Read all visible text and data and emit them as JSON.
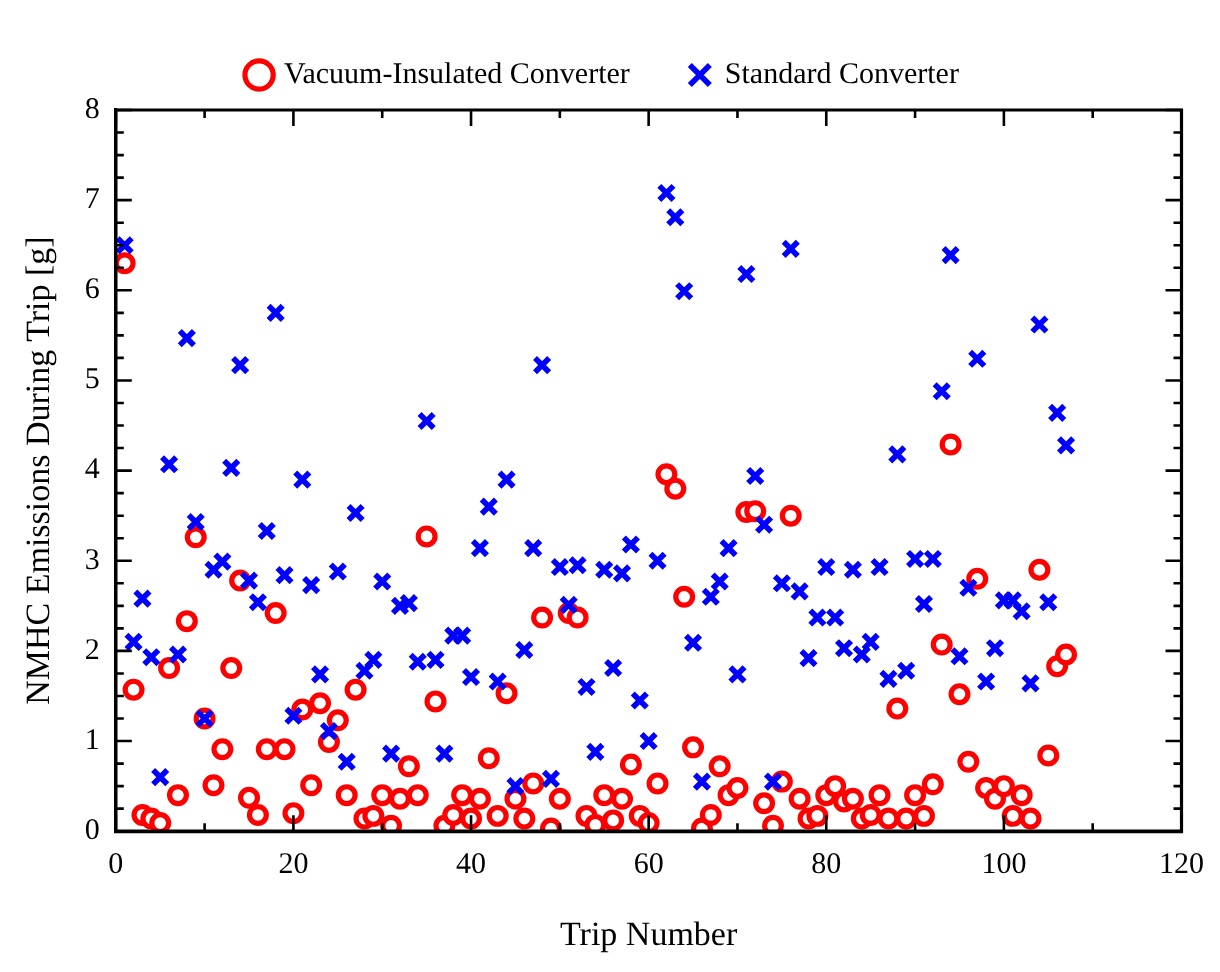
{
  "chart_data": {
    "type": "scatter",
    "xlabel": "Trip Number",
    "ylabel": "NMHC Emissions During Trip [g]",
    "x": [
      1,
      2,
      3,
      4,
      5,
      6,
      7,
      8,
      9,
      10,
      11,
      12,
      13,
      14,
      15,
      16,
      17,
      18,
      19,
      20,
      21,
      22,
      23,
      24,
      25,
      26,
      27,
      28,
      29,
      30,
      31,
      32,
      33,
      34,
      35,
      36,
      37,
      38,
      39,
      40,
      41,
      42,
      43,
      44,
      45,
      46,
      47,
      48,
      49,
      50,
      51,
      52,
      53,
      54,
      55,
      56,
      57,
      58,
      59,
      60,
      61,
      62,
      63,
      64,
      65,
      66,
      67,
      68,
      69,
      70,
      71,
      72,
      73,
      74,
      75,
      76,
      77,
      78,
      79,
      80,
      81,
      82,
      83,
      84,
      85,
      86,
      87,
      88,
      89,
      90,
      91,
      92,
      93,
      94,
      95,
      96,
      97,
      98,
      99,
      100,
      101,
      102,
      103,
      104,
      105,
      106,
      107
    ],
    "series": [
      {
        "name": "Vacuum-Insulated Converter",
        "color": "#ff0000",
        "marker": "circle",
        "values": [
          6.3,
          1.57,
          0.18,
          0.14,
          0.09,
          1.81,
          0.4,
          2.33,
          3.26,
          1.25,
          0.51,
          0.91,
          1.81,
          2.78,
          0.37,
          0.18,
          0.91,
          2.42,
          0.91,
          0.2,
          1.35,
          0.51,
          1.42,
          0.99,
          1.23,
          0.4,
          1.57,
          0.14,
          0.17,
          0.4,
          0.06,
          0.36,
          0.72,
          0.4,
          3.27,
          1.44,
          0.06,
          0.18,
          0.4,
          0.14,
          0.36,
          0.81,
          0.17,
          1.53,
          0.36,
          0.14,
          0.53,
          2.37,
          0.03,
          0.36,
          2.42,
          2.37,
          0.17,
          0.07,
          0.4,
          0.12,
          0.36,
          0.74,
          0.17,
          0.09,
          0.53,
          3.96,
          3.8,
          2.6,
          0.93,
          0.03,
          0.18,
          0.72,
          0.4,
          0.48,
          3.54,
          3.55,
          0.31,
          0.06,
          0.55,
          3.5,
          0.36,
          0.14,
          0.17,
          0.4,
          0.5,
          0.33,
          0.36,
          0.14,
          0.18,
          0.4,
          0.14,
          1.36,
          0.14,
          0.4,
          0.17,
          0.52,
          2.07,
          4.29,
          1.52,
          0.77,
          2.8,
          0.48,
          0.36,
          0.5,
          0.17,
          0.4,
          0.14,
          2.9,
          0.84,
          1.83,
          1.96
        ]
      },
      {
        "name": "Standard Converter",
        "color": "#0000ff",
        "marker": "cross",
        "values": [
          6.5,
          2.1,
          2.58,
          1.93,
          0.6,
          4.07,
          1.96,
          5.47,
          3.43,
          1.25,
          2.9,
          2.99,
          4.03,
          5.17,
          2.78,
          2.54,
          3.33,
          5.75,
          2.84,
          1.28,
          3.9,
          2.73,
          1.74,
          1.11,
          2.88,
          0.77,
          3.53,
          1.78,
          1.9,
          2.77,
          0.86,
          2.5,
          2.53,
          1.88,
          4.55,
          1.9,
          0.86,
          2.17,
          2.17,
          1.71,
          3.14,
          3.6,
          1.66,
          3.9,
          0.5,
          2.01,
          3.14,
          5.17,
          0.58,
          2.93,
          2.51,
          2.95,
          1.6,
          0.88,
          2.9,
          1.81,
          2.86,
          3.18,
          1.45,
          1.0,
          3.0,
          7.08,
          6.81,
          5.99,
          2.09,
          0.55,
          2.6,
          2.77,
          3.14,
          1.74,
          6.18,
          3.94,
          3.4,
          0.55,
          2.75,
          6.46,
          2.66,
          1.92,
          2.37,
          2.93,
          2.37,
          2.03,
          2.9,
          1.96,
          2.1,
          2.93,
          1.69,
          4.18,
          1.78,
          3.02,
          2.52,
          3.02,
          4.88,
          6.39,
          1.94,
          2.7,
          5.24,
          1.66,
          2.03,
          2.56,
          2.56,
          2.44,
          1.64,
          5.62,
          2.54,
          4.64,
          4.28
        ]
      }
    ],
    "xlim": [
      0,
      120
    ],
    "xticks": [
      0,
      20,
      40,
      60,
      80,
      100,
      120
    ],
    "ylim": [
      0,
      8
    ],
    "yticks": [
      0,
      1,
      2,
      3,
      4,
      5,
      6,
      7,
      8
    ],
    "grid": false,
    "legend": "top"
  }
}
